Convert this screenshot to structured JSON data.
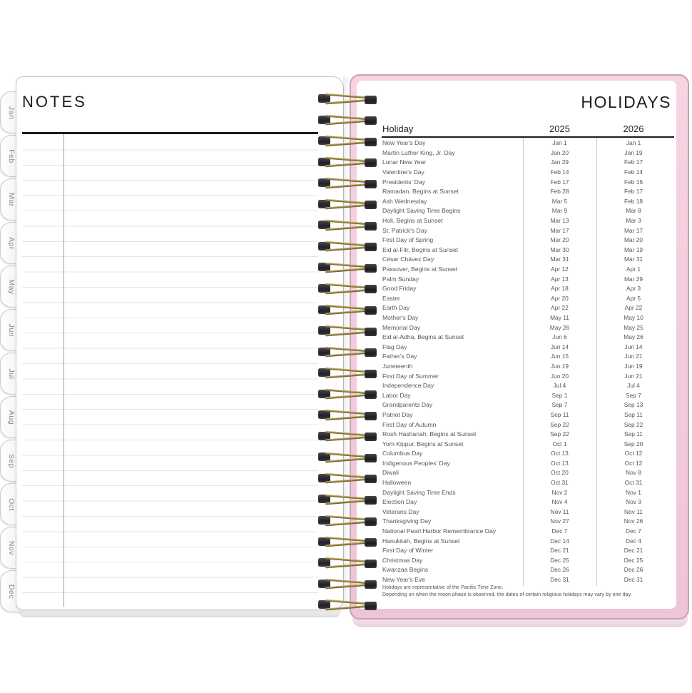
{
  "left_page": {
    "title": "NOTES"
  },
  "tabs": [
    "Jan",
    "Feb",
    "Mar",
    "Apr",
    "May",
    "Jun",
    "Jul",
    "Aug",
    "Sep",
    "Oct",
    "Nov",
    "Dec"
  ],
  "right_page": {
    "title": "HOLIDAYS",
    "table": {
      "headers": {
        "holiday": "Holiday",
        "year1": "2025",
        "year2": "2026"
      },
      "rows": [
        {
          "name": "New Year's Day",
          "d2025": "Jan 1",
          "d2026": "Jan 1"
        },
        {
          "name": "Martin Luther King, Jr. Day",
          "d2025": "Jan 20",
          "d2026": "Jan 19"
        },
        {
          "name": "Lunar New Year",
          "d2025": "Jan 29",
          "d2026": "Feb 17"
        },
        {
          "name": "Valentine's Day",
          "d2025": "Feb 14",
          "d2026": "Feb 14"
        },
        {
          "name": "Presidents' Day",
          "d2025": "Feb 17",
          "d2026": "Feb 16"
        },
        {
          "name": "Ramadan, Begins at Sunset",
          "d2025": "Feb 28",
          "d2026": "Feb 17"
        },
        {
          "name": "Ash Wednesday",
          "d2025": "Mar 5",
          "d2026": "Feb 18"
        },
        {
          "name": "Daylight Saving Time Begins",
          "d2025": "Mar 9",
          "d2026": "Mar 8"
        },
        {
          "name": "Holi, Begins at Sunset",
          "d2025": "Mar 13",
          "d2026": "Mar 3"
        },
        {
          "name": "St. Patrick's Day",
          "d2025": "Mar 17",
          "d2026": "Mar 17"
        },
        {
          "name": "First Day of Spring",
          "d2025": "Mar 20",
          "d2026": "Mar 20"
        },
        {
          "name": "Eid al-Fitr, Begins at Sunset",
          "d2025": "Mar 30",
          "d2026": "Mar 19"
        },
        {
          "name": "César Chávez Day",
          "d2025": "Mar 31",
          "d2026": "Mar 31"
        },
        {
          "name": "Passover, Begins at Sunset",
          "d2025": "Apr 12",
          "d2026": "Apr 1"
        },
        {
          "name": "Palm Sunday",
          "d2025": "Apr 13",
          "d2026": "Mar 29"
        },
        {
          "name": "Good Friday",
          "d2025": "Apr 18",
          "d2026": "Apr 3"
        },
        {
          "name": "Easter",
          "d2025": "Apr 20",
          "d2026": "Apr 5"
        },
        {
          "name": "Earth Day",
          "d2025": "Apr 22",
          "d2026": "Apr 22"
        },
        {
          "name": "Mother's Day",
          "d2025": "May 11",
          "d2026": "May 10"
        },
        {
          "name": "Memorial Day",
          "d2025": "May 26",
          "d2026": "May 25"
        },
        {
          "name": "Eid al-Adha, Begins at Sunset",
          "d2025": "Jun 6",
          "d2026": "May 26"
        },
        {
          "name": "Flag Day",
          "d2025": "Jun 14",
          "d2026": "Jun 14"
        },
        {
          "name": "Father's Day",
          "d2025": "Jun 15",
          "d2026": "Jun 21"
        },
        {
          "name": "Juneteenth",
          "d2025": "Jun 19",
          "d2026": "Jun 19"
        },
        {
          "name": "First Day of Summer",
          "d2025": "Jun 20",
          "d2026": "Jun 21"
        },
        {
          "name": "Independence Day",
          "d2025": "Jul 4",
          "d2026": "Jul 4"
        },
        {
          "name": "Labor Day",
          "d2025": "Sep 1",
          "d2026": "Sep 7"
        },
        {
          "name": "Grandparents Day",
          "d2025": "Sep 7",
          "d2026": "Sep 13"
        },
        {
          "name": "Patriot Day",
          "d2025": "Sep 11",
          "d2026": "Sep 11"
        },
        {
          "name": "First Day of Autumn",
          "d2025": "Sep 22",
          "d2026": "Sep 22"
        },
        {
          "name": "Rosh Hashanah, Begins at Sunset",
          "d2025": "Sep 22",
          "d2026": "Sep 11"
        },
        {
          "name": "Yom Kippur, Begins at Sunset",
          "d2025": "Oct 1",
          "d2026": "Sep 20"
        },
        {
          "name": "Columbus Day",
          "d2025": "Oct 13",
          "d2026": "Oct 12"
        },
        {
          "name": "Indigenous Peoples' Day",
          "d2025": "Oct 13",
          "d2026": "Oct 12"
        },
        {
          "name": "Diwali",
          "d2025": "Oct 20",
          "d2026": "Nov 8"
        },
        {
          "name": "Halloween",
          "d2025": "Oct 31",
          "d2026": "Oct 31"
        },
        {
          "name": "Daylight Saving Time Ends",
          "d2025": "Nov 2",
          "d2026": "Nov 1"
        },
        {
          "name": "Election Day",
          "d2025": "Nov 4",
          "d2026": "Nov 3"
        },
        {
          "name": "Veterans Day",
          "d2025": "Nov 11",
          "d2026": "Nov 11"
        },
        {
          "name": "Thanksgiving Day",
          "d2025": "Nov 27",
          "d2026": "Nov 26"
        },
        {
          "name": "National Pearl Harbor Remembrance Day",
          "d2025": "Dec 7",
          "d2026": "Dec 7"
        },
        {
          "name": "Hanukkah, Begins at Sunset",
          "d2025": "Dec 14",
          "d2026": "Dec 4"
        },
        {
          "name": "First Day of Winter",
          "d2025": "Dec 21",
          "d2026": "Dec 21"
        },
        {
          "name": "Christmas Day",
          "d2025": "Dec 25",
          "d2026": "Dec 25"
        },
        {
          "name": "Kwanzaa Begins",
          "d2025": "Dec 26",
          "d2026": "Dec 26"
        },
        {
          "name": "New Year's Eve",
          "d2025": "Dec 31",
          "d2026": "Dec 31"
        }
      ]
    },
    "footnotes": [
      "Holidays are representative of the Pacific Time Zone.",
      "Depending on when the moon phase is observed, the dates of certain religious holidays may vary by one day."
    ]
  },
  "colors": {
    "cover_pink": "#f2cbdc",
    "cover_border": "#c8a1b6",
    "wire_gold": "#97853f",
    "rule_black": "#1c1b1e"
  }
}
